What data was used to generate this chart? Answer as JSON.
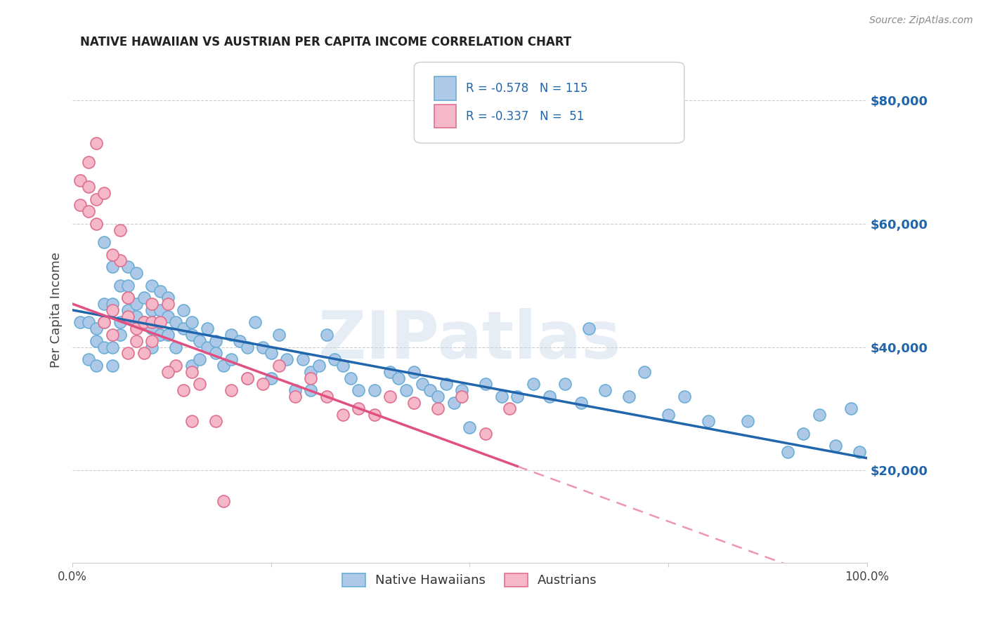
{
  "title": "NATIVE HAWAIIAN VS AUSTRIAN PER CAPITA INCOME CORRELATION CHART",
  "source": "Source: ZipAtlas.com",
  "ylabel": "Per Capita Income",
  "yticks": [
    20000,
    40000,
    60000,
    80000
  ],
  "ytick_labels": [
    "$20,000",
    "$40,000",
    "$60,000",
    "$80,000"
  ],
  "xlim": [
    0,
    1
  ],
  "ylim": [
    5000,
    87000
  ],
  "watermark": "ZIPatlas",
  "blue_color": "#6baed6",
  "pink_color": "#f08080",
  "blue_line_color": "#2166ac",
  "pink_line_color": "#e05080",
  "blue_scatter_fill": "#aec9e8",
  "pink_scatter_fill": "#f4b8c8",
  "blue_scatter_edge": "#6baed6",
  "pink_scatter_edge": "#e07090",
  "blue_intercept": 46000,
  "blue_slope": -24000,
  "pink_intercept": 47000,
  "pink_slope": -47000,
  "blue_points_x": [
    0.01,
    0.02,
    0.02,
    0.03,
    0.03,
    0.03,
    0.04,
    0.04,
    0.04,
    0.04,
    0.05,
    0.05,
    0.05,
    0.05,
    0.06,
    0.06,
    0.06,
    0.07,
    0.07,
    0.07,
    0.07,
    0.08,
    0.08,
    0.08,
    0.08,
    0.09,
    0.09,
    0.1,
    0.1,
    0.1,
    0.1,
    0.11,
    0.11,
    0.11,
    0.12,
    0.12,
    0.12,
    0.13,
    0.13,
    0.14,
    0.14,
    0.15,
    0.15,
    0.15,
    0.16,
    0.16,
    0.17,
    0.17,
    0.18,
    0.18,
    0.19,
    0.2,
    0.2,
    0.21,
    0.22,
    0.22,
    0.23,
    0.24,
    0.25,
    0.25,
    0.26,
    0.27,
    0.28,
    0.29,
    0.3,
    0.3,
    0.31,
    0.32,
    0.33,
    0.34,
    0.35,
    0.36,
    0.38,
    0.4,
    0.41,
    0.42,
    0.43,
    0.44,
    0.45,
    0.46,
    0.47,
    0.48,
    0.49,
    0.5,
    0.52,
    0.54,
    0.56,
    0.58,
    0.6,
    0.62,
    0.64,
    0.65,
    0.67,
    0.7,
    0.72,
    0.75,
    0.77,
    0.8,
    0.85,
    0.9,
    0.92,
    0.94,
    0.96,
    0.98,
    0.99
  ],
  "blue_points_y": [
    44000,
    38000,
    44000,
    37000,
    41000,
    43000,
    57000,
    40000,
    44000,
    47000,
    53000,
    47000,
    40000,
    37000,
    50000,
    44000,
    42000,
    46000,
    50000,
    53000,
    48000,
    47000,
    44000,
    52000,
    45000,
    48000,
    44000,
    50000,
    46000,
    43000,
    40000,
    49000,
    46000,
    42000,
    45000,
    42000,
    48000,
    44000,
    40000,
    46000,
    43000,
    44000,
    42000,
    37000,
    41000,
    38000,
    40000,
    43000,
    41000,
    39000,
    37000,
    42000,
    38000,
    41000,
    40000,
    35000,
    44000,
    40000,
    39000,
    35000,
    42000,
    38000,
    33000,
    38000,
    33000,
    36000,
    37000,
    42000,
    38000,
    37000,
    35000,
    33000,
    33000,
    36000,
    35000,
    33000,
    36000,
    34000,
    33000,
    32000,
    34000,
    31000,
    33000,
    27000,
    34000,
    32000,
    32000,
    34000,
    32000,
    34000,
    31000,
    43000,
    33000,
    32000,
    36000,
    29000,
    32000,
    28000,
    28000,
    23000,
    26000,
    29000,
    24000,
    30000,
    23000
  ],
  "pink_points_x": [
    0.01,
    0.01,
    0.02,
    0.02,
    0.02,
    0.03,
    0.03,
    0.04,
    0.04,
    0.05,
    0.05,
    0.06,
    0.06,
    0.07,
    0.07,
    0.08,
    0.08,
    0.09,
    0.09,
    0.1,
    0.1,
    0.11,
    0.12,
    0.13,
    0.14,
    0.15,
    0.16,
    0.18,
    0.2,
    0.22,
    0.24,
    0.26,
    0.28,
    0.3,
    0.32,
    0.34,
    0.36,
    0.38,
    0.4,
    0.43,
    0.46,
    0.49,
    0.52,
    0.55,
    0.03,
    0.05,
    0.07,
    0.1,
    0.12,
    0.15,
    0.19
  ],
  "pink_points_y": [
    67000,
    63000,
    70000,
    66000,
    62000,
    64000,
    60000,
    65000,
    44000,
    46000,
    42000,
    59000,
    54000,
    45000,
    39000,
    43000,
    41000,
    44000,
    39000,
    44000,
    41000,
    44000,
    47000,
    37000,
    33000,
    36000,
    34000,
    28000,
    33000,
    35000,
    34000,
    37000,
    32000,
    35000,
    32000,
    29000,
    30000,
    29000,
    32000,
    31000,
    30000,
    32000,
    26000,
    30000,
    73000,
    55000,
    48000,
    47000,
    36000,
    28000,
    15000
  ]
}
